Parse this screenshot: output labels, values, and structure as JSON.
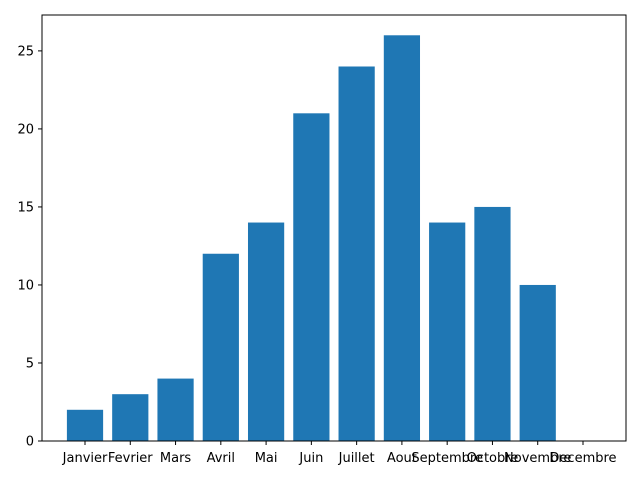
{
  "chart_data": {
    "type": "bar",
    "title": "",
    "xlabel": "",
    "ylabel": "",
    "categories": [
      "Janvier",
      "Fevrier",
      "Mars",
      "Avril",
      "Mai",
      "Juin",
      "Juillet",
      "Aout",
      "Septembre",
      "Octobre",
      "Novembre",
      "Decembre"
    ],
    "values": [
      2,
      3,
      4,
      12,
      14,
      21,
      24,
      26,
      14,
      15,
      10,
      0
    ],
    "ylim": [
      0,
      27.3
    ],
    "yticks": [
      0,
      5,
      10,
      15,
      20,
      25
    ],
    "bar_color": "#1f77b4",
    "grid": false,
    "legend": "none"
  }
}
